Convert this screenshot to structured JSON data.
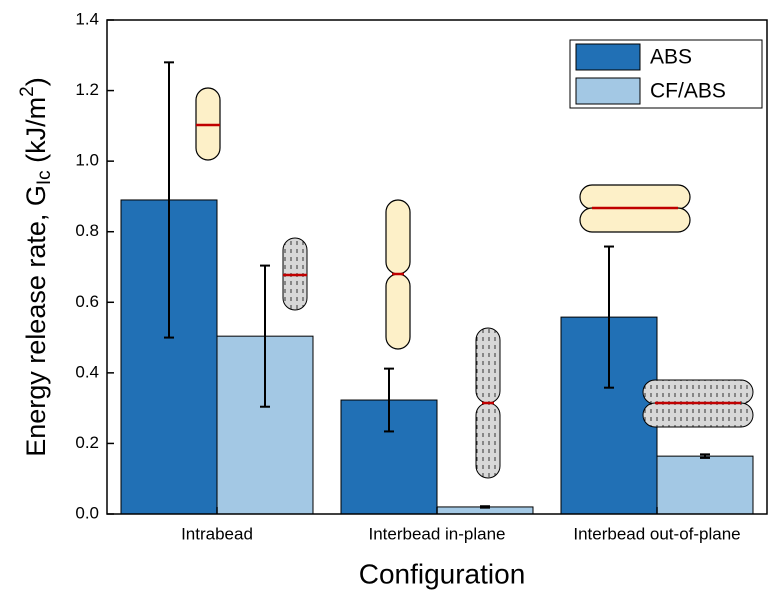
{
  "chart_data": {
    "type": "bar",
    "x_label": "Configuration",
    "y_label": [
      "Energy release rate, G",
      "Ic",
      " (kJ/m",
      "2",
      ")"
    ],
    "categories": [
      "Intrabead",
      "Interbead in-plane",
      "Interbead out-of-plane"
    ],
    "series": [
      {
        "name": "ABS",
        "color": "#2170b5",
        "values": [
          0.89,
          0.323,
          0.558
        ],
        "errors": [
          0.39,
          0.089,
          0.2
        ]
      },
      {
        "name": "CF/ABS",
        "color": "#a3c8e4",
        "values": [
          0.504,
          0.02,
          0.164
        ],
        "errors": [
          0.2,
          0.002,
          0.005
        ]
      }
    ],
    "ylim": [
      0,
      1.4
    ],
    "yticks": [
      {
        "value": 0,
        "label": "0.0"
      },
      0.2,
      0.4,
      0.6,
      0.8,
      {
        "value": 1,
        "label": "1.0"
      },
      1.2,
      1.4
    ],
    "legend": "upper right"
  }
}
